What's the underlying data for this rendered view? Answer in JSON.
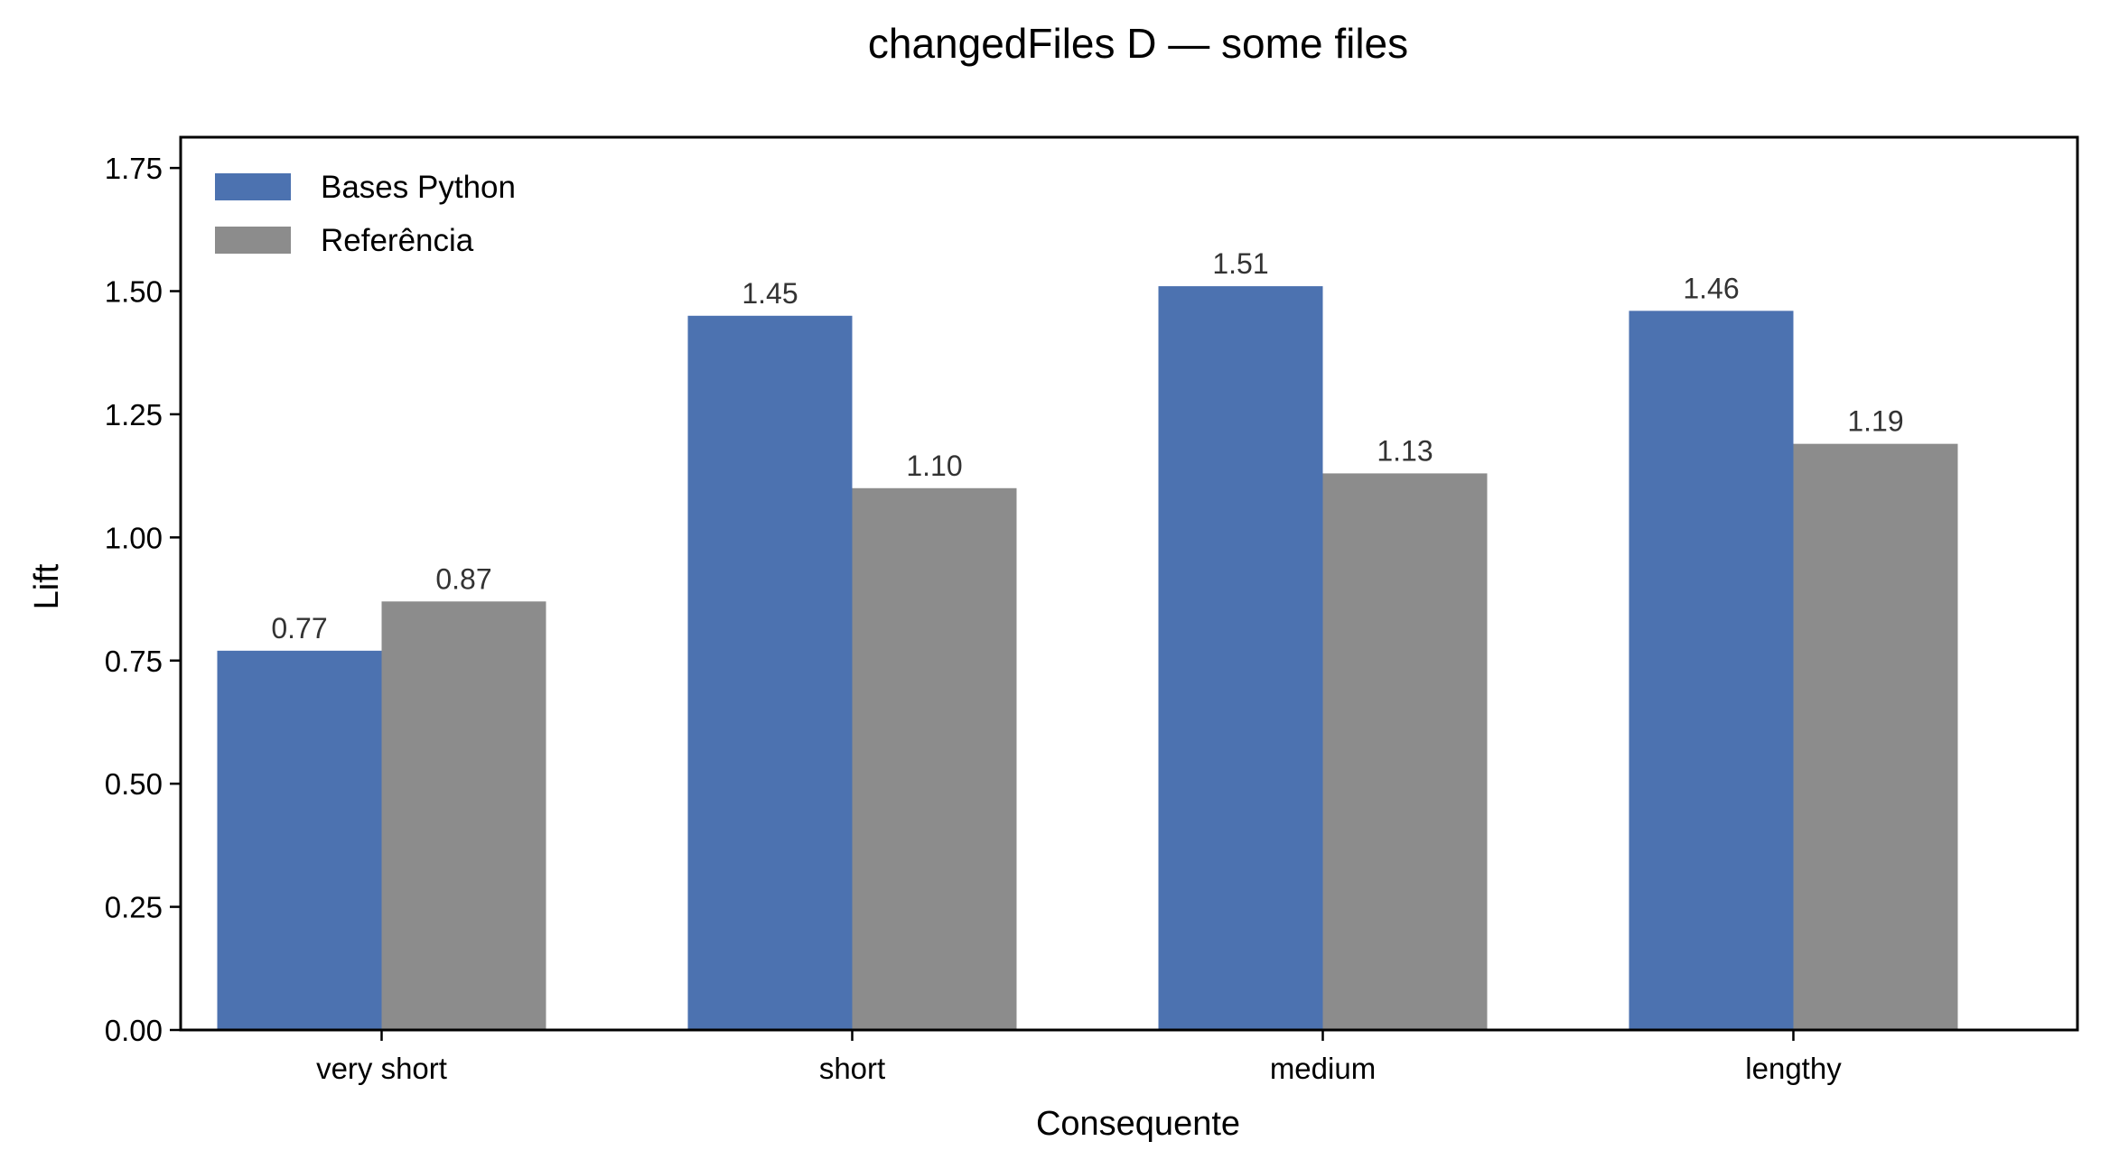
{
  "chart_data": {
    "type": "bar",
    "title": "changedFiles D — some files",
    "xlabel": "Consequente",
    "ylabel": "Lift",
    "categories": [
      "very short",
      "short",
      "medium",
      "lengthy"
    ],
    "series": [
      {
        "name": "Bases Python",
        "color": "#4c72b0",
        "values": [
          0.77,
          1.45,
          1.51,
          1.46
        ],
        "labels": [
          "0.77",
          "1.45",
          "1.51",
          "1.46"
        ]
      },
      {
        "name": "Referência",
        "color": "#8c8c8c",
        "values": [
          0.87,
          1.1,
          1.13,
          1.19
        ],
        "labels": [
          "0.87",
          "1.10",
          "1.13",
          "1.19"
        ]
      }
    ],
    "ylim": [
      0,
      1.8125
    ],
    "yticks": [
      0.0,
      0.25,
      0.5,
      0.75,
      1.0,
      1.25,
      1.5,
      1.75
    ],
    "ytick_labels": [
      "0.00",
      "0.25",
      "0.50",
      "0.75",
      "1.00",
      "1.25",
      "1.50",
      "1.75"
    ],
    "grid": false,
    "legend_position": "top-left"
  }
}
